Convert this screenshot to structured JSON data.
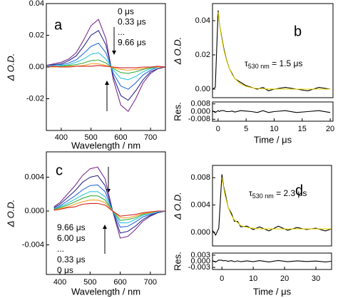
{
  "chart_data": [
    {
      "type": "line",
      "xlim": [
        350,
        750
      ],
      "ylim": [
        -0.04,
        0.04
      ],
      "xticks": [
        400,
        500,
        600,
        700
      ],
      "yticks": [
        -0.02,
        {
          "value": 0,
          "label": "0.00"
        },
        0.02,
        0.04
      ],
      "xlabel": "Wavelength / nm",
      "ylabel": "Δ O.D.",
      "panel_label": "a",
      "annotations": [
        "0 μs",
        "0.33 μs",
        "...",
        "9.66 μs"
      ],
      "x": [
        350,
        375,
        400,
        425,
        450,
        475,
        500,
        525,
        550,
        575,
        600,
        625,
        650,
        675,
        700,
        725,
        750
      ],
      "series": [
        {
          "color": "#7b2d8e",
          "values": [
            0.001,
            0.002,
            0.003,
            0.005,
            0.009,
            0.017,
            0.026,
            0.03,
            0.018,
            -0.008,
            -0.024,
            -0.028,
            -0.02,
            -0.01,
            -0.004,
            -0.001,
            0.0
          ]
        },
        {
          "color": "#2b2b8c",
          "values": [
            0.001,
            0.0015,
            0.002,
            0.004,
            0.007,
            0.013,
            0.02,
            0.023,
            0.014,
            -0.006,
            -0.018,
            -0.021,
            -0.015,
            -0.008,
            -0.003,
            -0.001,
            0.0
          ]
        },
        {
          "color": "#2f6fd6",
          "values": [
            0.0,
            0.001,
            0.0015,
            0.0025,
            0.0045,
            0.0085,
            0.013,
            0.015,
            0.009,
            -0.004,
            -0.012,
            -0.014,
            -0.01,
            -0.005,
            -0.002,
            0.0,
            0.0
          ]
        },
        {
          "color": "#33c6e0",
          "values": [
            0.0,
            0.001,
            0.001,
            0.0015,
            0.003,
            0.005,
            0.008,
            0.009,
            0.005,
            -0.002,
            -0.007,
            -0.008,
            -0.006,
            -0.003,
            -0.001,
            0.0,
            0.0
          ]
        },
        {
          "color": "#3cb043",
          "values": [
            0.0,
            0.0,
            0.0005,
            0.001,
            0.0015,
            0.0025,
            0.004,
            0.0045,
            0.0025,
            -0.001,
            -0.0035,
            -0.004,
            -0.003,
            -0.0015,
            -0.0005,
            0.0,
            0.0
          ]
        },
        {
          "color": "#f0a020",
          "values": [
            0.0,
            0.0,
            0.0,
            0.0005,
            0.0005,
            0.001,
            0.002,
            0.002,
            0.001,
            -0.0005,
            -0.0015,
            -0.002,
            -0.0015,
            -0.001,
            0.0,
            0.0,
            0.0
          ]
        },
        {
          "color": "#d42020",
          "values": [
            0.0,
            0.0005,
            0.0,
            0.0,
            0.0005,
            0.0005,
            0.0005,
            0.001,
            0.0005,
            0.0,
            -0.0005,
            -0.0005,
            -0.0005,
            0.0,
            0.0,
            0.0005,
            0.0
          ]
        }
      ]
    },
    {
      "type": "line",
      "xlim": [
        -1,
        20.5
      ],
      "ylim": [
        -0.005,
        0.05
      ],
      "yticks": [
        {
          "value": 0,
          "label": "0.00"
        },
        0.02,
        0.04
      ],
      "ylabel": "Δ O.D.",
      "panel_label": "b",
      "fit_label": {
        "symbol": "τ",
        "subscript": "530 nm",
        "text": " = 1.5 μs"
      },
      "x": [
        -1,
        -0.5,
        0,
        0.25,
        0.5,
        1,
        1.5,
        2,
        2.5,
        3,
        4,
        5,
        6,
        7,
        8,
        9,
        10,
        12,
        14,
        16,
        18,
        20
      ],
      "series": [
        {
          "color": "#000000",
          "values": [
            0.0,
            0.001,
            0.046,
            0.038,
            0.033,
            0.024,
            0.017,
            0.012,
            0.009,
            0.006,
            0.004,
            0.002,
            0.001,
            0.0,
            0.001,
            -0.001,
            0.0,
            0.001,
            0.0,
            -0.001,
            0.001,
            0.0
          ]
        },
        {
          "color": "#e8d800",
          "values": [
            null,
            null,
            0.045,
            0.0378,
            0.0322,
            0.0231,
            0.0166,
            0.0119,
            0.0085,
            0.0061,
            0.0031,
            0.0016,
            0.0008,
            0.0004,
            0.0002,
            0.0001,
            0.0001,
            0,
            0,
            0,
            0,
            0
          ]
        }
      ]
    },
    {
      "type": "line",
      "xlim": [
        -1,
        20.5
      ],
      "ylim": [
        -0.01,
        0.01
      ],
      "xticks": [
        0,
        5,
        10,
        15,
        20
      ],
      "yticks": [
        -0.008,
        {
          "value": 0,
          "label": "0.000"
        },
        0.008
      ],
      "xlabel": "Time / μs",
      "ylabel": "Res.",
      "x": [
        -1,
        -0.5,
        0,
        0.25,
        0.5,
        1,
        1.5,
        2,
        2.5,
        3,
        4,
        5,
        6,
        7,
        8,
        9,
        10,
        12,
        14,
        16,
        18,
        20
      ],
      "series": [
        {
          "color": "#000000",
          "values": [
            0.001,
            -0.001,
            0.001,
            0.0,
            0.001,
            0.001,
            0.0,
            0.0,
            0.0005,
            -0.0005,
            0.001,
            0.0005,
            0.0,
            -0.001,
            0.001,
            -0.001,
            0.0,
            0.001,
            -0.001,
            0.0,
            0.001,
            -0.001
          ]
        }
      ]
    },
    {
      "type": "line",
      "xlim": [
        355,
        750
      ],
      "ylim": [
        -0.0075,
        0.007
      ],
      "xticks": [
        400,
        500,
        600,
        700
      ],
      "yticks": [
        -0.004,
        {
          "value": 0,
          "label": "0.000"
        },
        0.004
      ],
      "xlabel": "Wavelength / nm",
      "ylabel": "Δ O.D.",
      "panel_label": "c",
      "annotations": [
        "9.66 μs",
        "6.00 μs",
        "...",
        "0.33 μs",
        "0 μs"
      ],
      "x": [
        380,
        400,
        425,
        450,
        475,
        500,
        525,
        550,
        575,
        600,
        625,
        650,
        675,
        700,
        725,
        750
      ],
      "series": [
        {
          "color": "#7b2d8e",
          "values": [
            0.0005,
            0.001,
            0.002,
            0.003,
            0.0042,
            0.005,
            0.0052,
            0.0038,
            0.0,
            -0.0032,
            -0.003,
            -0.0022,
            -0.0012,
            -0.0006,
            -0.0002,
            0.0
          ]
        },
        {
          "color": "#2b2b8c",
          "values": [
            0.0004,
            0.0008,
            0.0016,
            0.0024,
            0.0034,
            0.004,
            0.0042,
            0.003,
            0.0,
            -0.0026,
            -0.0024,
            -0.0018,
            -0.001,
            -0.0005,
            -0.0002,
            0.0
          ]
        },
        {
          "color": "#2f6fd6",
          "values": [
            0.0003,
            0.0006,
            0.0012,
            0.0018,
            0.0025,
            0.003,
            0.0031,
            0.0023,
            0.0,
            -0.0019,
            -0.0018,
            -0.0013,
            -0.0007,
            -0.0004,
            -0.0001,
            0.0
          ]
        },
        {
          "color": "#33c6e0",
          "values": [
            0.0002,
            0.0005,
            0.0009,
            0.0014,
            0.0019,
            0.0023,
            0.0023,
            0.0017,
            0.0,
            -0.0014,
            -0.0014,
            -0.001,
            -0.0005,
            -0.0003,
            -0.0001,
            0.0
          ]
        },
        {
          "color": "#3cb043",
          "values": [
            0.0002,
            0.0004,
            0.0007,
            0.0011,
            0.0015,
            0.0018,
            0.0018,
            0.0013,
            0.0,
            -0.0011,
            -0.001,
            -0.0008,
            -0.0004,
            -0.0002,
            0.0,
            0.0
          ]
        },
        {
          "color": "#f0a020",
          "values": [
            0.0001,
            0.0003,
            0.0005,
            0.0008,
            0.0011,
            0.0013,
            0.0013,
            0.001,
            0.0,
            -0.0008,
            -0.0008,
            -0.0006,
            -0.0003,
            -0.0002,
            0.0,
            0.0
          ]
        },
        {
          "color": "#d42020",
          "values": [
            0.0001,
            0.0002,
            0.0004,
            0.0005,
            0.0008,
            0.0009,
            0.0009,
            0.0007,
            0.0,
            -0.0006,
            -0.0005,
            -0.0004,
            -0.0002,
            -0.0001,
            0.0,
            0.0
          ]
        }
      ]
    },
    {
      "type": "line",
      "xlim": [
        -3,
        35
      ],
      "ylim": [
        -0.002,
        0.0098
      ],
      "yticks": [
        {
          "value": 0,
          "label": "0.000"
        },
        0.004,
        0.008
      ],
      "ylabel": "Δ O.D.",
      "panel_label": "d",
      "fit_label": {
        "symbol": "τ",
        "subscript": "530 nm",
        "text": " = 2.3 μs"
      },
      "x": [
        -3,
        -2,
        -1,
        0,
        0.5,
        1,
        2,
        3,
        4,
        5,
        6,
        8,
        10,
        12,
        15,
        18,
        21,
        24,
        27,
        30,
        33,
        35
      ],
      "series": [
        {
          "color": "#000000",
          "values": [
            0.0003,
            -0.0004,
            0.0006,
            0.0085,
            0.0068,
            0.0058,
            0.0036,
            0.0028,
            0.0016,
            0.0016,
            0.0008,
            0.0009,
            0.0004,
            0.0008,
            0.0002,
            0.0009,
            0.0003,
            0.0007,
            0.0004,
            0.0006,
            0.0002,
            0.0005
          ]
        },
        {
          "color": "#e8d800",
          "values": [
            null,
            null,
            null,
            0.008,
            0.0066,
            0.0054,
            0.0036,
            0.0025,
            0.0018,
            0.0014,
            0.001,
            0.0007,
            0.0006,
            0.0005,
            0.0005,
            0.0005,
            0.0005,
            0.0005,
            0.0005,
            0.0005,
            0.0005,
            0.0005
          ]
        }
      ]
    },
    {
      "type": "line",
      "xlim": [
        -3,
        35
      ],
      "ylim": [
        -0.004,
        0.004
      ],
      "xticks": [
        0,
        10,
        20,
        30
      ],
      "yticks": [
        -0.003,
        {
          "value": 0,
          "label": "0.000"
        },
        0.003
      ],
      "xlabel": "Time / μs",
      "ylabel": "Res.",
      "x": [
        -3,
        -2,
        -1,
        0,
        0.5,
        1,
        2,
        3,
        4,
        5,
        6,
        8,
        10,
        12,
        15,
        18,
        21,
        24,
        27,
        30,
        33,
        35
      ],
      "series": [
        {
          "color": "#000000",
          "values": [
            0.0003,
            -0.0004,
            0.0006,
            0.0005,
            0.0002,
            0.0004,
            0,
            0.0003,
            -0.0002,
            0.0002,
            -0.0002,
            0.0002,
            -0.0002,
            0.0003,
            -0.0003,
            0.0004,
            -0.0002,
            0.0002,
            -0.0001,
            0.0001,
            -0.0003,
            0
          ]
        }
      ]
    }
  ]
}
